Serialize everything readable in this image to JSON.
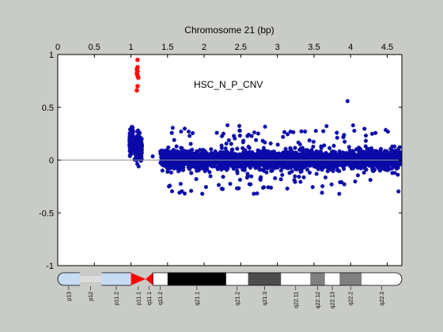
{
  "chart_data": {
    "type": "scatter",
    "title": "",
    "xlabel": "Chromosome 21 (bp)",
    "ylabel": "",
    "xlim": [
      0,
      4.7
    ],
    "ylim": [
      -1,
      1
    ],
    "xticks": [
      0,
      0.5,
      1,
      1.5,
      2,
      2.5,
      3,
      3.5,
      4,
      4.5
    ],
    "xtick_labels": [
      "0",
      "0.5",
      "1",
      "1.5",
      "2",
      "2.5",
      "3",
      "3.5",
      "4",
      "4.5"
    ],
    "yticks": [
      -1,
      -0.5,
      0,
      0.5,
      1
    ],
    "ytick_labels": [
      "-1",
      "-0.5",
      "0",
      "0.5",
      "1"
    ],
    "x_axis_position": "top",
    "grid": false,
    "annotation": "HSC_N_P_CNV",
    "baseline": 0,
    "colors": {
      "points": "#0a0aa8",
      "highlight": "#ff0a0a",
      "baseline": "#8c8c8c",
      "plot_bg": "#ffffff"
    },
    "series": [
      {
        "color": "#ff0a0a",
        "points": [
          [
            1.09,
            0.95
          ],
          [
            1.09,
            0.88
          ],
          [
            1.08,
            0.86
          ],
          [
            1.09,
            0.84
          ],
          [
            1.08,
            0.82
          ],
          [
            1.09,
            0.8
          ],
          [
            1.1,
            0.78
          ],
          [
            1.09,
            0.7
          ],
          [
            1.08,
            0.66
          ]
        ]
      },
      {
        "color": "#0a0aa8",
        "clusters": [
          {
            "x_range": [
              0.98,
              1.03
            ],
            "y_range": [
              -0.35,
              0.7
            ],
            "count": 110
          },
          {
            "x_range": [
              1.05,
              1.15
            ],
            "y_range": [
              -0.38,
              0.6
            ],
            "count": 170
          },
          {
            "x_range": [
              1.27,
              1.3
            ],
            "y_range": [
              0.02,
              0.05
            ],
            "count": 1
          },
          {
            "x_range": [
              1.4,
              4.68
            ],
            "y_range": [
              -0.32,
              0.33
            ],
            "count": 2600
          },
          {
            "x_range": [
              3.9,
              4.0
            ],
            "y_range": [
              0.55,
              0.57
            ],
            "count": 1
          }
        ]
      }
    ],
    "ideogram": {
      "bands": [
        {
          "name": "p13",
          "start": 0.0,
          "end": 0.3,
          "stain": "gvar"
        },
        {
          "name": "p12",
          "start": 0.3,
          "end": 0.6,
          "stain": "stalk"
        },
        {
          "name": "p11.2",
          "start": 0.6,
          "end": 1.0,
          "stain": "gvar"
        },
        {
          "name": "p11.1",
          "start": 1.0,
          "end": 1.2,
          "stain": "acen"
        },
        {
          "name": "q11.1",
          "start": 1.2,
          "end": 1.3,
          "stain": "acen"
        },
        {
          "name": "q11.2",
          "start": 1.3,
          "end": 1.5,
          "stain": "gneg"
        },
        {
          "name": "q21.1",
          "start": 1.5,
          "end": 2.3,
          "stain": "gpos100"
        },
        {
          "name": "q21.2",
          "start": 2.3,
          "end": 2.6,
          "stain": "gneg"
        },
        {
          "name": "q21.3",
          "start": 2.6,
          "end": 3.05,
          "stain": "gpos75"
        },
        {
          "name": "q22.11",
          "start": 3.05,
          "end": 3.45,
          "stain": "gneg"
        },
        {
          "name": "q22.12",
          "start": 3.45,
          "end": 3.65,
          "stain": "gpos50"
        },
        {
          "name": "q22.13",
          "start": 3.65,
          "end": 3.85,
          "stain": "gneg"
        },
        {
          "name": "q22.2",
          "start": 3.85,
          "end": 4.15,
          "stain": "gpos50"
        },
        {
          "name": "q22.3",
          "start": 4.15,
          "end": 4.7,
          "stain": "gneg"
        }
      ],
      "stain_colors": {
        "gvar": "#c6dcf5",
        "stalk": "#dcdcdc",
        "acen": "#ff0000",
        "gneg": "#ffffff",
        "gpos100": "#000000",
        "gpos75": "#4d4d4d",
        "gpos50": "#7f7f7f"
      }
    }
  }
}
